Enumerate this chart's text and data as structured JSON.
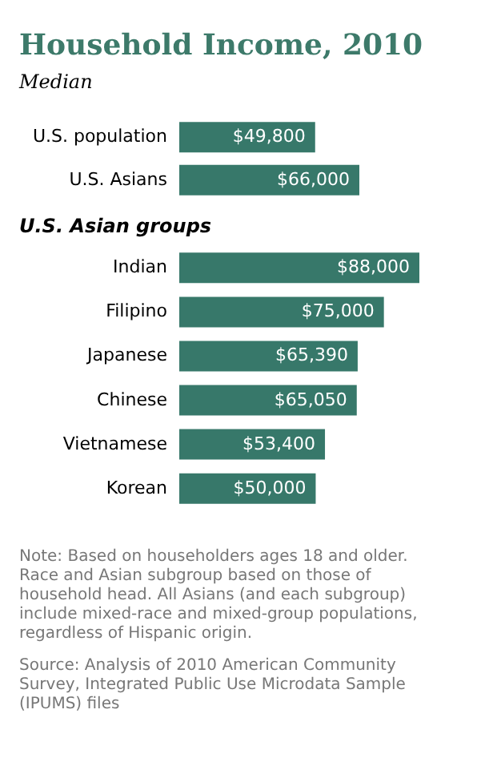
{
  "chart_data": [
    {
      "type": "bar",
      "orientation": "horizontal",
      "title": "Household Income, 2010",
      "subtitle": "Median",
      "categories": [
        "U.S. population",
        "U.S. Asians"
      ],
      "values": [
        49800,
        66000
      ],
      "value_labels": [
        "$49,800",
        "$66,000"
      ],
      "color": "#37786a"
    },
    {
      "type": "bar",
      "orientation": "horizontal",
      "title": "U.S. Asian groups",
      "categories": [
        "Indian",
        "Filipino",
        "Japanese",
        "Chinese",
        "Vietnamese",
        "Korean"
      ],
      "values": [
        88000,
        75000,
        65390,
        65050,
        53400,
        50000
      ],
      "value_labels": [
        "$88,000",
        "$75,000",
        "$65,390",
        "$65,050",
        "$53,400",
        "$50,000"
      ],
      "color": "#37786a",
      "annotations": [
        "Note: Based on householders ages 18 and older. Race and Asian subgroup based on those of household head. All Asians (and each subgroup) include mixed-race and mixed-group populations, regardless of Hispanic origin.",
        "Source: Analysis of 2010 American Community Survey, Integrated Public Use Microdata Sample (IPUMS) files"
      ]
    }
  ]
}
